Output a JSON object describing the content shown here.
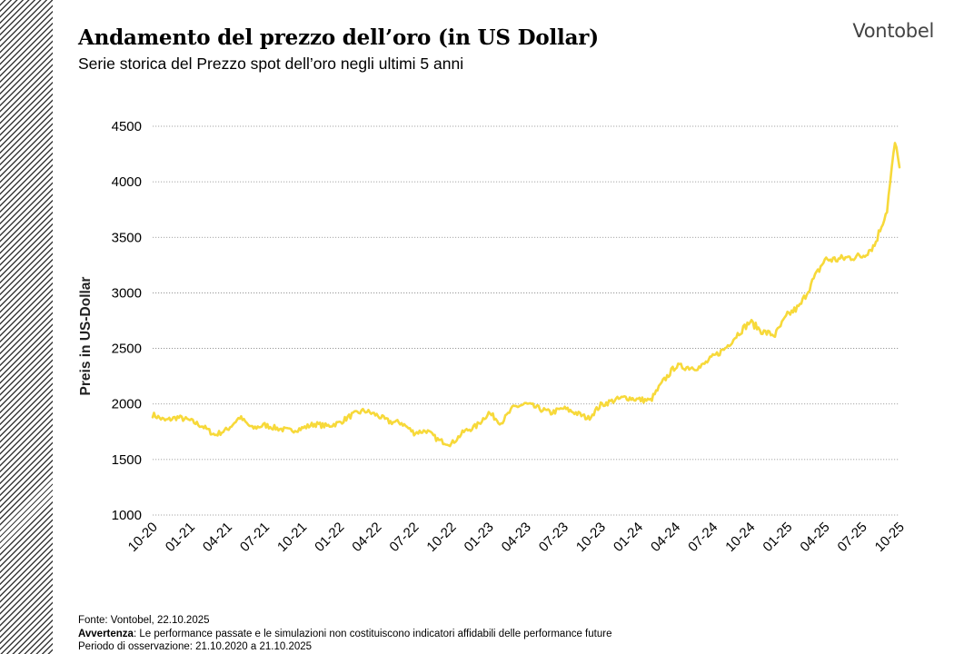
{
  "header": {
    "title": "Andamento del prezzo dell’oro (in US Dollar)",
    "subtitle": "Serie storica del Prezzo spot dell’oro negli ultimi 5 anni",
    "logo": "Vontobel"
  },
  "footer": {
    "source": "Fonte: Vontobel, 22.10.2025",
    "warning_label": "Avvertenza",
    "warning_text": ": Le performance passate e le simulazioni non costituiscono indicatori affidabili delle performance future",
    "period": "Periodo di osservazione: 21.10.2020 a 21.10.2025"
  },
  "chart_data": {
    "type": "line",
    "ylabel": "Preis in US-Dollar",
    "xlabel": "",
    "ylim": [
      1000,
      4500
    ],
    "yticks": [
      1000,
      1500,
      2000,
      2500,
      3000,
      3500,
      4000,
      4500
    ],
    "xticks": [
      "10-20",
      "01-21",
      "04-21",
      "07-21",
      "10-21",
      "01-22",
      "04-22",
      "07-22",
      "10-22",
      "01-23",
      "04-23",
      "07-23",
      "10-23",
      "01-24",
      "04-24",
      "07-24",
      "10-24",
      "01-25",
      "04-25",
      "07-25",
      "10-25"
    ],
    "grid": "horizontal dotted",
    "line_color": "#F7D93A",
    "series": [
      {
        "values": [
          [
            "10-20",
            1905
          ],
          [
            "11-20",
            1850
          ],
          [
            "12-20",
            1880
          ],
          [
            "01-21",
            1850
          ],
          [
            "02-21",
            1800
          ],
          [
            "03-21",
            1720
          ],
          [
            "04-21",
            1770
          ],
          [
            "05-21",
            1880
          ],
          [
            "06-21",
            1780
          ],
          [
            "07-21",
            1810
          ],
          [
            "08-21",
            1780
          ],
          [
            "09-21",
            1760
          ],
          [
            "10-21",
            1780
          ],
          [
            "11-21",
            1820
          ],
          [
            "12-21",
            1800
          ],
          [
            "01-22",
            1830
          ],
          [
            "02-22",
            1900
          ],
          [
            "03-22",
            1940
          ],
          [
            "04-22",
            1900
          ],
          [
            "05-22",
            1840
          ],
          [
            "06-22",
            1830
          ],
          [
            "07-22",
            1740
          ],
          [
            "08-22",
            1760
          ],
          [
            "09-22",
            1670
          ],
          [
            "10-22",
            1640
          ],
          [
            "11-22",
            1750
          ],
          [
            "12-22",
            1800
          ],
          [
            "01-23",
            1920
          ],
          [
            "02-23",
            1830
          ],
          [
            "03-23",
            1970
          ],
          [
            "04-23",
            2000
          ],
          [
            "05-23",
            1960
          ],
          [
            "06-23",
            1920
          ],
          [
            "07-23",
            1960
          ],
          [
            "08-23",
            1920
          ],
          [
            "09-23",
            1870
          ],
          [
            "10-23",
            1990
          ],
          [
            "11-23",
            2030
          ],
          [
            "12-23",
            2060
          ],
          [
            "01-24",
            2040
          ],
          [
            "02-24",
            2030
          ],
          [
            "03-24",
            2200
          ],
          [
            "04-24",
            2340
          ],
          [
            "05-24",
            2330
          ],
          [
            "06-24",
            2330
          ],
          [
            "07-24",
            2420
          ],
          [
            "08-24",
            2500
          ],
          [
            "09-24",
            2630
          ],
          [
            "10-24",
            2740
          ],
          [
            "11-24",
            2650
          ],
          [
            "12-24",
            2620
          ],
          [
            "01-25",
            2800
          ],
          [
            "02-25",
            2880
          ],
          [
            "03-25",
            3100
          ],
          [
            "04-25",
            3300
          ],
          [
            "05-25",
            3300
          ],
          [
            "06-25",
            3320
          ],
          [
            "07-25",
            3330
          ],
          [
            "08-25",
            3430
          ],
          [
            "09-25",
            3750
          ],
          [
            "10-25",
            4350
          ],
          [
            "10-25",
            4130
          ]
        ]
      }
    ]
  }
}
